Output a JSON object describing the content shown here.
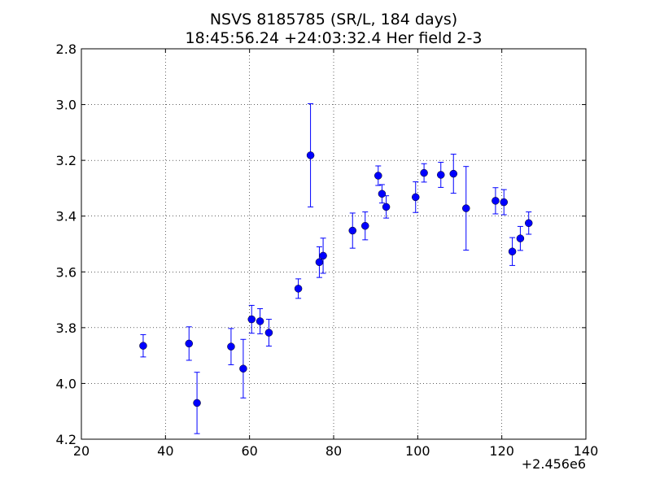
{
  "chart_data": {
    "type": "scatter",
    "title_line1": "NSVS 8185785 (SR/L, 184 days)",
    "title_line2": "18:45:56.24 +24:03:32.4 Her field 2-3",
    "xlabel": "",
    "ylabel": "",
    "x_offset_label": "+2.456e6",
    "xlim": [
      20,
      140
    ],
    "ylim": [
      2.8,
      4.2
    ],
    "y_inverted": true,
    "grid": true,
    "marker_color": "#0000ff",
    "x_ticks": [
      20,
      40,
      60,
      80,
      100,
      120,
      140
    ],
    "x_tick_labels": [
      "20",
      "40",
      "60",
      "80",
      "100",
      "120",
      "140"
    ],
    "y_ticks": [
      2.8,
      3.0,
      3.2,
      3.4,
      3.6,
      3.8,
      4.0,
      4.2
    ],
    "y_tick_labels": [
      "2.8",
      "3.0",
      "3.2",
      "3.4",
      "3.6",
      "3.8",
      "4.0",
      "4.2"
    ],
    "points": [
      {
        "x": 34.7,
        "y": 3.865,
        "err": 0.04
      },
      {
        "x": 45.6,
        "y": 3.857,
        "err": 0.06
      },
      {
        "x": 47.5,
        "y": 4.07,
        "err": 0.11
      },
      {
        "x": 55.6,
        "y": 3.868,
        "err": 0.065
      },
      {
        "x": 58.5,
        "y": 3.947,
        "err": 0.105
      },
      {
        "x": 60.5,
        "y": 3.77,
        "err": 0.05
      },
      {
        "x": 62.5,
        "y": 3.777,
        "err": 0.045
      },
      {
        "x": 64.6,
        "y": 3.818,
        "err": 0.048
      },
      {
        "x": 71.6,
        "y": 3.66,
        "err": 0.035
      },
      {
        "x": 74.5,
        "y": 3.182,
        "err": 0.185
      },
      {
        "x": 76.6,
        "y": 3.565,
        "err": 0.055
      },
      {
        "x": 77.5,
        "y": 3.542,
        "err": 0.063
      },
      {
        "x": 84.5,
        "y": 3.452,
        "err": 0.063
      },
      {
        "x": 87.5,
        "y": 3.435,
        "err": 0.05
      },
      {
        "x": 90.6,
        "y": 3.255,
        "err": 0.035
      },
      {
        "x": 91.5,
        "y": 3.32,
        "err": 0.033
      },
      {
        "x": 92.5,
        "y": 3.367,
        "err": 0.04
      },
      {
        "x": 99.5,
        "y": 3.332,
        "err": 0.055
      },
      {
        "x": 101.5,
        "y": 3.245,
        "err": 0.033
      },
      {
        "x": 105.5,
        "y": 3.252,
        "err": 0.045
      },
      {
        "x": 108.5,
        "y": 3.248,
        "err": 0.07
      },
      {
        "x": 111.5,
        "y": 3.372,
        "err": 0.15
      },
      {
        "x": 118.5,
        "y": 3.345,
        "err": 0.047
      },
      {
        "x": 120.5,
        "y": 3.35,
        "err": 0.045
      },
      {
        "x": 122.5,
        "y": 3.527,
        "err": 0.05
      },
      {
        "x": 124.4,
        "y": 3.48,
        "err": 0.043
      },
      {
        "x": 126.4,
        "y": 3.425,
        "err": 0.04
      }
    ]
  }
}
